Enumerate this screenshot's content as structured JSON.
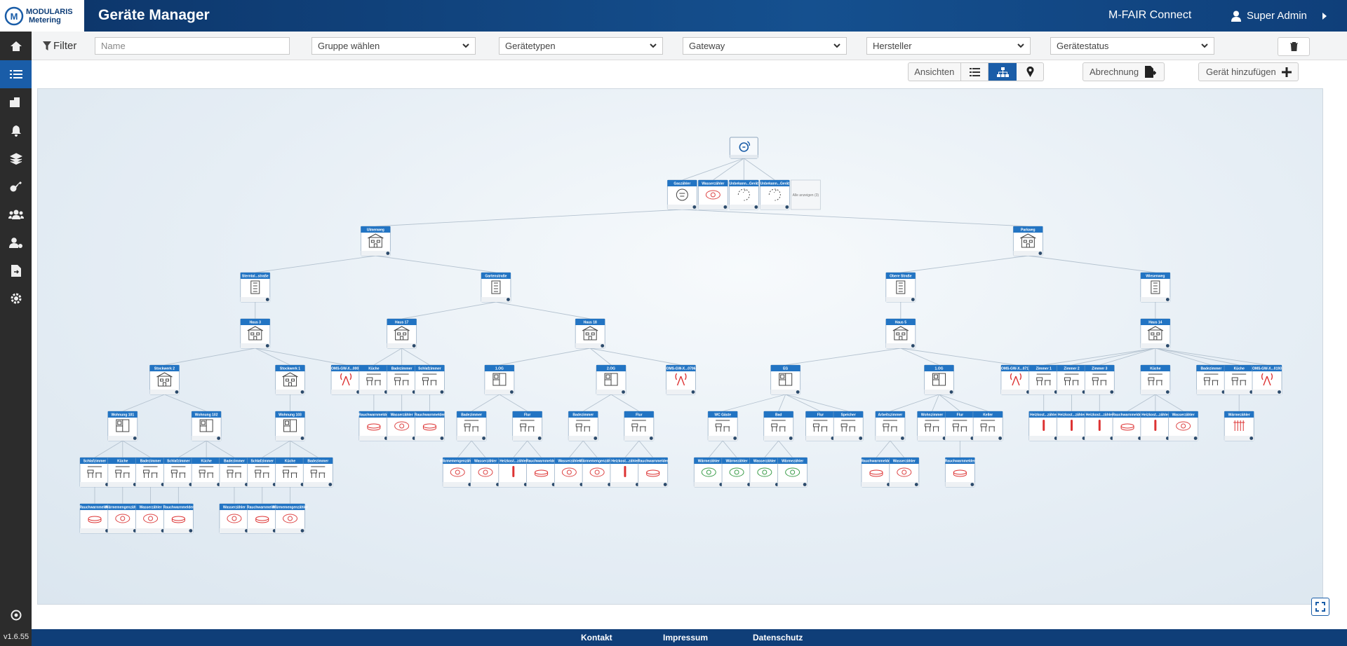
{
  "header": {
    "logo_mark": "M",
    "logo_line1": "MODULARIS",
    "logo_line2": "Metering",
    "title": "Geräte Manager",
    "brand": "M-FAIR Connect",
    "user": "Super Admin"
  },
  "filters": {
    "label": "Filter",
    "name_placeholder": "Name",
    "selects": [
      "Gruppe wählen",
      "Gerätetypen",
      "Gateway",
      "Hersteller",
      "Gerätestatus"
    ]
  },
  "toolbar": {
    "views": "Ansichten",
    "billing": "Abrechnung",
    "add": "Gerät hinzufügen"
  },
  "tree": {
    "kind": "gateway",
    "more": "Alle anzeigen (3)",
    "devices": [
      {
        "label": "Gaszähler",
        "kind": "meter"
      },
      {
        "label": "Wasserzähler",
        "kind": "water"
      },
      {
        "label": "Unbekann...Gerät",
        "kind": "unknown"
      },
      {
        "label": "Unbekann...Gerät",
        "kind": "unknown"
      }
    ],
    "children": [
      {
        "label": "Ulmenweg",
        "kind": "building",
        "children": [
          {
            "label": "Sterntal...straße",
            "kind": "street",
            "children": [
              {
                "label": "Haus 3",
                "kind": "house",
                "children": [
                  {
                    "label": "Stockwerk 2",
                    "kind": "house",
                    "children": [
                      {
                        "label": "Wohnung 101",
                        "kind": "flat",
                        "children": [
                          {
                            "label": "Schlafzimmer",
                            "kind": "room",
                            "children": [
                              {
                                "label": "Rauchwarnmelder",
                                "kind": "smoke"
                              }
                            ]
                          },
                          {
                            "label": "Küche",
                            "kind": "room",
                            "children": [
                              {
                                "label": "Wärmemengenzähler",
                                "kind": "water"
                              }
                            ]
                          },
                          {
                            "label": "Badezimmer",
                            "kind": "room",
                            "children": [
                              {
                                "label": "Wasserzähler",
                                "kind": "water"
                              }
                            ]
                          }
                        ]
                      },
                      {
                        "label": "Wohnung 102",
                        "kind": "flat",
                        "children": [
                          {
                            "label": "Schlafzimmer",
                            "kind": "room",
                            "children": [
                              {
                                "label": "Rauchwarnmelder",
                                "kind": "smoke"
                              }
                            ]
                          },
                          {
                            "label": "Küche",
                            "kind": "room"
                          },
                          {
                            "label": "Badezimmer",
                            "kind": "room",
                            "children": [
                              {
                                "label": "Wasserzähler",
                                "kind": "water"
                              }
                            ]
                          }
                        ]
                      }
                    ]
                  },
                  {
                    "label": "Stockwerk 1",
                    "kind": "house",
                    "children": [
                      {
                        "label": "Wohnung 103",
                        "kind": "flat",
                        "children": [
                          {
                            "label": "Schlafzimmer",
                            "kind": "room",
                            "children": [
                              {
                                "label": "Rauchwarnmelder",
                                "kind": "smoke"
                              }
                            ]
                          },
                          {
                            "label": "Küche",
                            "kind": "room",
                            "children": [
                              {
                                "label": "Wärmemengenzähler",
                                "kind": "water"
                              }
                            ]
                          },
                          {
                            "label": "Badezimmer",
                            "kind": "room"
                          }
                        ]
                      }
                    ]
                  },
                  {
                    "label": "OMS-GW-X...0002",
                    "kind": "antenna"
                  }
                ]
              }
            ]
          },
          {
            "label": "Gartenstraße",
            "kind": "street",
            "children": [
              {
                "label": "Haus 17",
                "kind": "house",
                "children": [
                  {
                    "label": "Küche",
                    "kind": "room",
                    "children": [
                      {
                        "label": "Rauchwarnmelder",
                        "kind": "smoke"
                      }
                    ]
                  },
                  {
                    "label": "Badezimmer",
                    "kind": "room",
                    "children": [
                      {
                        "label": "Wasserzähler",
                        "kind": "water"
                      }
                    ]
                  },
                  {
                    "label": "Schlafzimmer",
                    "kind": "room",
                    "children": [
                      {
                        "label": "Rauchwarnmelder",
                        "kind": "smoke"
                      }
                    ]
                  }
                ]
              },
              {
                "label": "Haus 18",
                "kind": "house",
                "children": [
                  {
                    "label": "1.OG",
                    "kind": "flat",
                    "children": [
                      {
                        "label": "Badezimmer",
                        "kind": "room",
                        "children": [
                          {
                            "label": "Wärmemengenzähler",
                            "kind": "water"
                          },
                          {
                            "label": "Wasserzähler",
                            "kind": "water"
                          }
                        ]
                      },
                      {
                        "label": "Flur",
                        "kind": "room",
                        "children": [
                          {
                            "label": "Heizkost...zähler",
                            "kind": "hkv"
                          },
                          {
                            "label": "Rauchwarnmelder",
                            "kind": "smoke"
                          }
                        ]
                      }
                    ]
                  },
                  {
                    "label": "2.OG",
                    "kind": "flat",
                    "children": [
                      {
                        "label": "Badezimmer",
                        "kind": "room",
                        "children": [
                          {
                            "label": "Wasserzähler",
                            "kind": "water"
                          },
                          {
                            "label": "Wärmemengenzähler",
                            "kind": "water"
                          }
                        ]
                      },
                      {
                        "label": "Flur",
                        "kind": "room",
                        "children": [
                          {
                            "label": "Heizkost...zähler",
                            "kind": "hkv"
                          },
                          {
                            "label": "Rauchwarnmelder",
                            "kind": "smoke"
                          }
                        ]
                      }
                    ]
                  },
                  {
                    "label": "OMS-GW-X...0706",
                    "kind": "antenna"
                  }
                ]
              }
            ]
          }
        ]
      },
      {
        "label": "Parkweg",
        "kind": "building",
        "children": [
          {
            "label": "Obere Straße",
            "kind": "street",
            "children": [
              {
                "label": "Haus 5",
                "kind": "house",
                "children": [
                  {
                    "label": "EG",
                    "kind": "flat",
                    "children": [
                      {
                        "label": "WC Gäste",
                        "kind": "room",
                        "children": [
                          {
                            "label": "Wärmezähler",
                            "kind": "heat"
                          },
                          {
                            "label": "Wärmezähler",
                            "kind": "heat"
                          }
                        ]
                      },
                      {
                        "label": "Bad",
                        "kind": "room",
                        "children": [
                          {
                            "label": "Wasserzähler",
                            "kind": "heat"
                          },
                          {
                            "label": "Wärmezähler",
                            "kind": "heat"
                          }
                        ]
                      },
                      {
                        "label": "Flur",
                        "kind": "room"
                      },
                      {
                        "label": "Speicher",
                        "kind": "room"
                      }
                    ]
                  },
                  {
                    "label": "1.OG",
                    "kind": "flat",
                    "children": [
                      {
                        "label": "Arbeitszimmer",
                        "kind": "room",
                        "children": [
                          {
                            "label": "Rauchwarnmelder",
                            "kind": "smoke"
                          },
                          {
                            "label": "Wasserzähler",
                            "kind": "water"
                          }
                        ]
                      },
                      {
                        "label": "Wohnzimmer",
                        "kind": "room"
                      },
                      {
                        "label": "Flur",
                        "kind": "room",
                        "children": [
                          {
                            "label": "Rauchwarnmelder",
                            "kind": "smoke"
                          }
                        ]
                      },
                      {
                        "label": "Keller",
                        "kind": "room"
                      }
                    ]
                  },
                  {
                    "label": "OMS-GW-X...0717",
                    "kind": "antenna"
                  }
                ]
              }
            ]
          },
          {
            "label": "Wiesenweg",
            "kind": "street",
            "children": [
              {
                "label": "Haus 14",
                "kind": "house",
                "children": [
                  {
                    "label": "Zimmer 1",
                    "kind": "room",
                    "children": [
                      {
                        "label": "Heizkost...zähler",
                        "kind": "hkv"
                      }
                    ]
                  },
                  {
                    "label": "Zimmer 2",
                    "kind": "room",
                    "children": [
                      {
                        "label": "Heizkost...zähler",
                        "kind": "hkv"
                      }
                    ]
                  },
                  {
                    "label": "Zimmer 3",
                    "kind": "room",
                    "children": [
                      {
                        "label": "Heizkost...zähler",
                        "kind": "hkv"
                      }
                    ]
                  },
                  {
                    "label": "Küche",
                    "kind": "room",
                    "children": [
                      {
                        "label": "Rauchwarnmelder",
                        "kind": "smoke"
                      },
                      {
                        "label": "Heizkost...zähler",
                        "kind": "hkv"
                      },
                      {
                        "label": "Wasserzähler",
                        "kind": "water"
                      }
                    ]
                  },
                  {
                    "label": "Badezimmer",
                    "kind": "room"
                  },
                  {
                    "label": "Küche",
                    "kind": "room",
                    "children": [
                      {
                        "label": "Wärmezähler",
                        "kind": "hkv2"
                      }
                    ]
                  },
                  {
                    "label": "OMS-GW-X...0193",
                    "kind": "antenna"
                  }
                ]
              }
            ]
          }
        ]
      }
    ]
  },
  "footer": {
    "links": [
      "Kontakt",
      "Impressum",
      "Datenschutz"
    ],
    "version": "v1.6.55"
  }
}
